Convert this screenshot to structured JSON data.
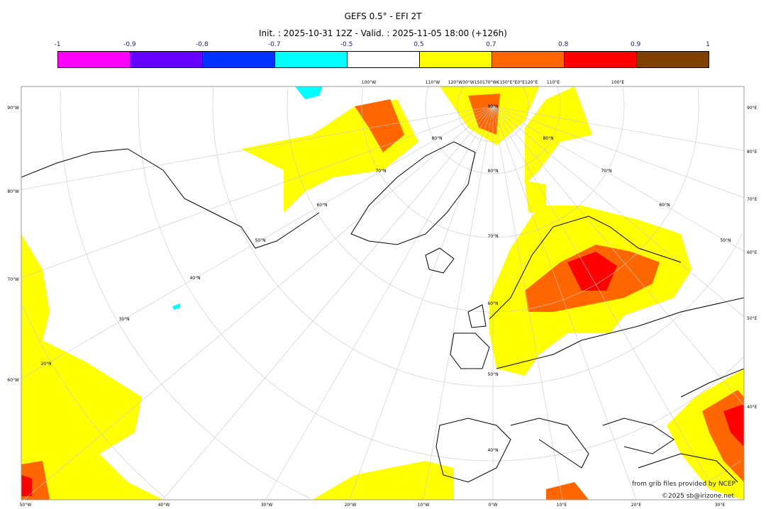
{
  "title": "GEFS 0.5° - EFI 2T",
  "subtitle": "Init. : 2025-10-31 12Z - Valid. : 2025-11-05 18:00 (+126h)",
  "colorbar": {
    "ticks": [
      "-1",
      "-0.9",
      "-0.8",
      "-0.7",
      "-0.5",
      "0.5",
      "0.7",
      "0.8",
      "0.9",
      "1"
    ],
    "colors": [
      "#ff00ff",
      "#6600ff",
      "#0033ff",
      "#00ffff",
      "#ffffff",
      "#ffff00",
      "#ff6600",
      "#ff0000",
      "#7f3f00"
    ]
  },
  "axes": {
    "left": [
      "90°W",
      "80°W",
      "70°W",
      "60°W"
    ],
    "right": [
      "90°E",
      "80°E",
      "70°E",
      "60°E",
      "50°E",
      "40°E"
    ],
    "bottom": [
      "50°W",
      "40°W",
      "30°W",
      "20°W",
      "10°W",
      "0°W",
      "10°E",
      "20°E",
      "30°E"
    ],
    "top": [
      "100°W",
      "110°W",
      "120°W30°W150170°W€150°E°E0°E120°E",
      "110°E",
      "100°E"
    ]
  },
  "grid_labels": [
    "90°N",
    "80°N",
    "80°N",
    "80°N",
    "70°N",
    "70°N",
    "70°N",
    "60°N",
    "60°N",
    "60°N",
    "50°N",
    "50°N",
    "50°N",
    "40°N",
    "40°N",
    "30°N",
    "20°N"
  ],
  "credits": {
    "line1": "from grib files provided by NCEP",
    "line2": "©2025 sb@irizone.net"
  }
}
